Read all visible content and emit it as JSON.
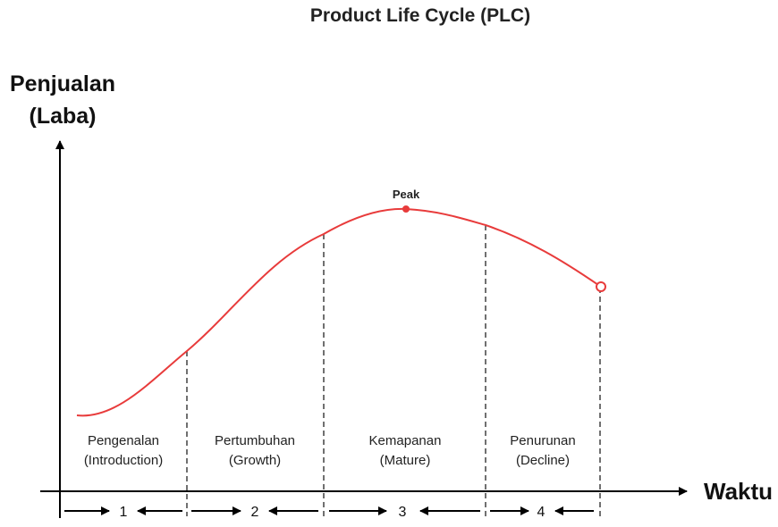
{
  "title": "Product Life Cycle (PLC)",
  "y_axis": {
    "line1": "Penjualan",
    "line2": "(Laba)"
  },
  "x_axis": {
    "label": "Waktu"
  },
  "peak_label": "Peak",
  "colors": {
    "curve": "#e83b3b",
    "axis": "#000000"
  },
  "stages": [
    {
      "name": "Pengenalan",
      "english": "(Introduction)",
      "number": "1"
    },
    {
      "name": "Pertumbuhan",
      "english": "(Growth)",
      "number": "2"
    },
    {
      "name": "Kemapanan",
      "english": "(Mature)",
      "number": "3"
    },
    {
      "name": "Penurunan",
      "english": "(Decline)",
      "number": "4"
    }
  ]
}
